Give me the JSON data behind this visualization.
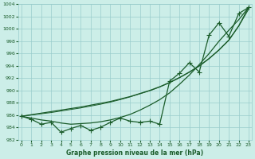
{
  "xlabel": "Graphe pression niveau de la mer (hPa)",
  "bg_color": "#cceee8",
  "grid_color": "#99cccc",
  "line_color": "#1a5c2a",
  "x_values": [
    0,
    1,
    2,
    3,
    4,
    5,
    6,
    7,
    8,
    9,
    10,
    11,
    12,
    13,
    14,
    15,
    16,
    17,
    18,
    19,
    20,
    21,
    22,
    23
  ],
  "jagged": [
    985.8,
    985.3,
    984.5,
    984.8,
    983.2,
    983.8,
    984.3,
    983.5,
    984.0,
    984.8,
    985.5,
    985.0,
    984.8,
    985.0,
    984.5,
    991.5,
    992.8,
    994.5,
    993.0,
    999.0,
    1001.0,
    998.8,
    1002.5,
    1003.5
  ],
  "smooth": [
    985.8,
    985.5,
    985.2,
    985.0,
    984.7,
    984.5,
    984.6,
    984.7,
    984.9,
    985.2,
    985.6,
    986.1,
    986.8,
    987.6,
    988.5,
    989.6,
    991.0,
    992.5,
    994.2,
    996.0,
    998.0,
    999.8,
    1001.5,
    1003.5
  ],
  "linear1": [
    985.8,
    986.05,
    986.3,
    986.55,
    986.8,
    987.05,
    987.3,
    987.6,
    987.9,
    988.2,
    988.6,
    989.0,
    989.5,
    990.0,
    990.6,
    991.3,
    992.1,
    993.0,
    994.0,
    995.2,
    996.6,
    998.2,
    1000.5,
    1003.5
  ],
  "linear2": [
    985.8,
    986.0,
    986.2,
    986.4,
    986.65,
    986.9,
    987.15,
    987.45,
    987.75,
    988.1,
    988.5,
    988.95,
    989.45,
    989.95,
    990.55,
    991.25,
    992.05,
    992.95,
    993.95,
    995.15,
    996.55,
    998.15,
    1000.45,
    1003.2
  ],
  "ylim_min": 982,
  "ylim_max": 1004,
  "yticks": [
    982,
    984,
    986,
    988,
    990,
    992,
    994,
    996,
    998,
    1000,
    1002,
    1004
  ],
  "xticks": [
    0,
    1,
    2,
    3,
    4,
    5,
    6,
    7,
    8,
    9,
    10,
    11,
    12,
    13,
    14,
    15,
    16,
    17,
    18,
    19,
    20,
    21,
    22,
    23
  ],
  "marker": "+",
  "marker_size": 4,
  "linewidth": 0.9
}
